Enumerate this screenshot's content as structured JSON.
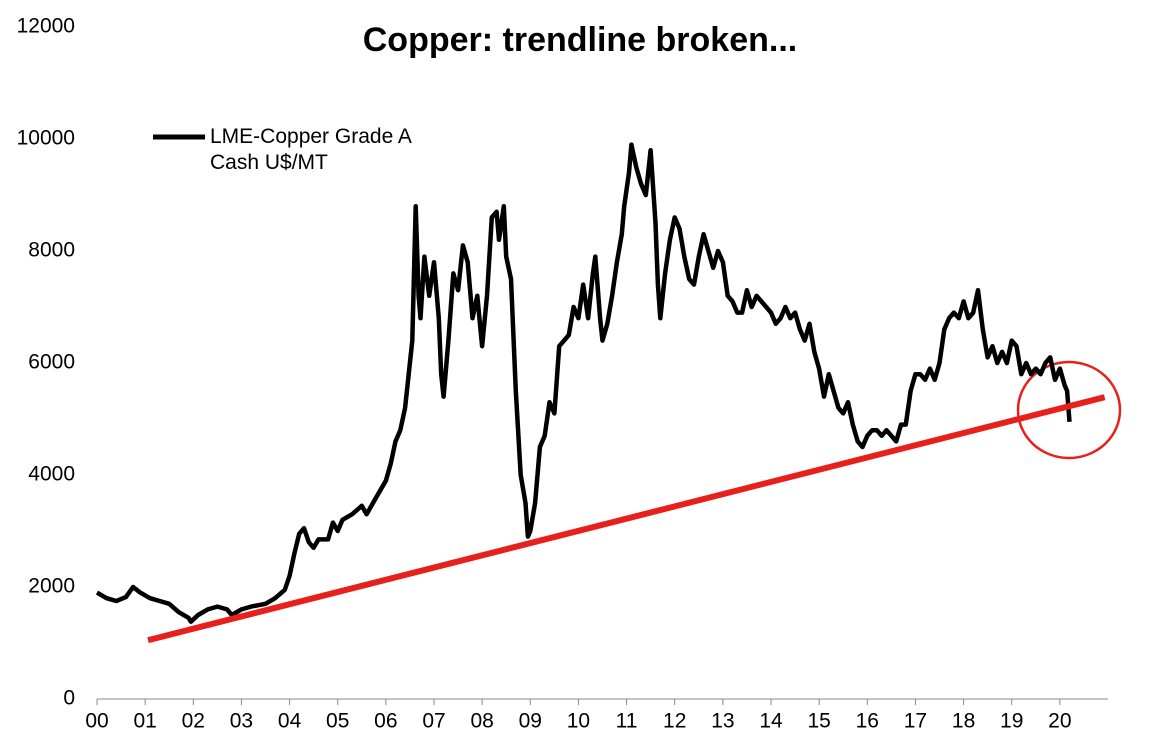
{
  "chart_data": {
    "type": "line",
    "title": "Copper: trendline broken...",
    "xlim": [
      0,
      21
    ],
    "ylim": [
      0,
      12000
    ],
    "xticks": [
      {
        "value": 0,
        "label": "00"
      },
      {
        "value": 1,
        "label": "01"
      },
      {
        "value": 2,
        "label": "02"
      },
      {
        "value": 3,
        "label": "03"
      },
      {
        "value": 4,
        "label": "04"
      },
      {
        "value": 5,
        "label": "05"
      },
      {
        "value": 6,
        "label": "06"
      },
      {
        "value": 7,
        "label": "07"
      },
      {
        "value": 8,
        "label": "08"
      },
      {
        "value": 9,
        "label": "09"
      },
      10,
      11,
      12,
      13,
      14,
      15,
      16,
      17,
      18,
      19,
      20
    ],
    "yticks": [
      0,
      2000,
      4000,
      6000,
      8000,
      10000,
      12000
    ],
    "series": [
      {
        "name": "LME-Copper Grade A Cash U$/MT",
        "color": "#000000",
        "x": [
          0.0,
          0.2,
          0.4,
          0.6,
          0.75,
          0.9,
          1.1,
          1.3,
          1.5,
          1.7,
          1.9,
          1.95,
          2.1,
          2.3,
          2.5,
          2.7,
          2.8,
          3.0,
          3.2,
          3.5,
          3.7,
          3.9,
          4.0,
          4.1,
          4.2,
          4.3,
          4.4,
          4.5,
          4.6,
          4.8,
          4.9,
          5.0,
          5.1,
          5.3,
          5.5,
          5.6,
          5.8,
          6.0,
          6.1,
          6.2,
          6.3,
          6.4,
          6.55,
          6.62,
          6.68,
          6.72,
          6.8,
          6.9,
          7.0,
          7.1,
          7.15,
          7.2,
          7.3,
          7.4,
          7.5,
          7.6,
          7.7,
          7.8,
          7.9,
          8.0,
          8.1,
          8.2,
          8.3,
          8.35,
          8.45,
          8.5,
          8.6,
          8.7,
          8.8,
          8.9,
          8.95,
          9.0,
          9.1,
          9.2,
          9.3,
          9.4,
          9.5,
          9.6,
          9.7,
          9.8,
          9.9,
          10.0,
          10.1,
          10.2,
          10.3,
          10.35,
          10.45,
          10.5,
          10.6,
          10.7,
          10.8,
          10.9,
          10.95,
          11.05,
          11.1,
          11.2,
          11.3,
          11.4,
          11.5,
          11.6,
          11.65,
          11.7,
          11.8,
          11.9,
          12.0,
          12.1,
          12.2,
          12.3,
          12.4,
          12.5,
          12.6,
          12.7,
          12.8,
          12.9,
          13.0,
          13.1,
          13.2,
          13.3,
          13.4,
          13.5,
          13.6,
          13.7,
          13.8,
          13.9,
          14.0,
          14.1,
          14.2,
          14.3,
          14.4,
          14.5,
          14.6,
          14.7,
          14.8,
          14.9,
          15.0,
          15.1,
          15.2,
          15.3,
          15.4,
          15.5,
          15.6,
          15.7,
          15.8,
          15.9,
          16.0,
          16.1,
          16.2,
          16.3,
          16.4,
          16.5,
          16.6,
          16.7,
          16.8,
          16.9,
          17.0,
          17.1,
          17.2,
          17.3,
          17.4,
          17.5,
          17.6,
          17.7,
          17.8,
          17.9,
          18.0,
          18.1,
          18.2,
          18.3,
          18.4,
          18.5,
          18.6,
          18.7,
          18.8,
          18.9,
          19.0,
          19.1,
          19.2,
          19.3,
          19.4,
          19.5,
          19.6,
          19.7,
          19.8,
          19.9,
          20.0,
          20.1,
          20.15,
          20.2
        ],
        "values": [
          1900,
          1800,
          1750,
          1820,
          2000,
          1900,
          1800,
          1750,
          1700,
          1550,
          1450,
          1380,
          1500,
          1600,
          1650,
          1600,
          1500,
          1600,
          1650,
          1700,
          1800,
          1950,
          2200,
          2600,
          2950,
          3050,
          2800,
          2700,
          2850,
          2850,
          3150,
          3000,
          3200,
          3300,
          3450,
          3300,
          3600,
          3900,
          4200,
          4600,
          4800,
          5200,
          6400,
          8800,
          7200,
          6800,
          7900,
          7200,
          7800,
          6800,
          5800,
          5400,
          6400,
          7600,
          7300,
          8100,
          7800,
          6800,
          7200,
          6300,
          7200,
          8600,
          8700,
          8200,
          8800,
          7900,
          7500,
          5500,
          4000,
          3500,
          2900,
          3000,
          3500,
          4500,
          4700,
          5300,
          5100,
          6300,
          6400,
          6500,
          7000,
          6800,
          7400,
          6800,
          7600,
          7900,
          6800,
          6400,
          6700,
          7200,
          7800,
          8300,
          8800,
          9400,
          9900,
          9500,
          9200,
          9000,
          9800,
          8500,
          7400,
          6800,
          7600,
          8200,
          8600,
          8400,
          7900,
          7500,
          7400,
          7900,
          8300,
          8000,
          7700,
          8000,
          7800,
          7200,
          7100,
          6900,
          6900,
          7300,
          7000,
          7200,
          7100,
          7000,
          6900,
          6700,
          6800,
          7000,
          6800,
          6900,
          6600,
          6400,
          6700,
          6200,
          5900,
          5400,
          5800,
          5500,
          5200,
          5100,
          5300,
          4900,
          4600,
          4500,
          4700,
          4800,
          4800,
          4700,
          4800,
          4700,
          4600,
          4900,
          4900,
          5500,
          5800,
          5800,
          5700,
          5900,
          5700,
          6000,
          6600,
          6800,
          6900,
          6800,
          7100,
          6800,
          6900,
          7300,
          6600,
          6100,
          6300,
          6000,
          6200,
          6000,
          6400,
          6300,
          5800,
          6000,
          5800,
          5900,
          5800,
          6000,
          6100,
          5700,
          5900,
          5600,
          5500,
          4950
        ]
      }
    ],
    "trendline": {
      "x": [
        1.06,
        20.93
      ],
      "values": [
        1050,
        5390
      ],
      "color": "#e8201c"
    },
    "legend": "upper left"
  }
}
